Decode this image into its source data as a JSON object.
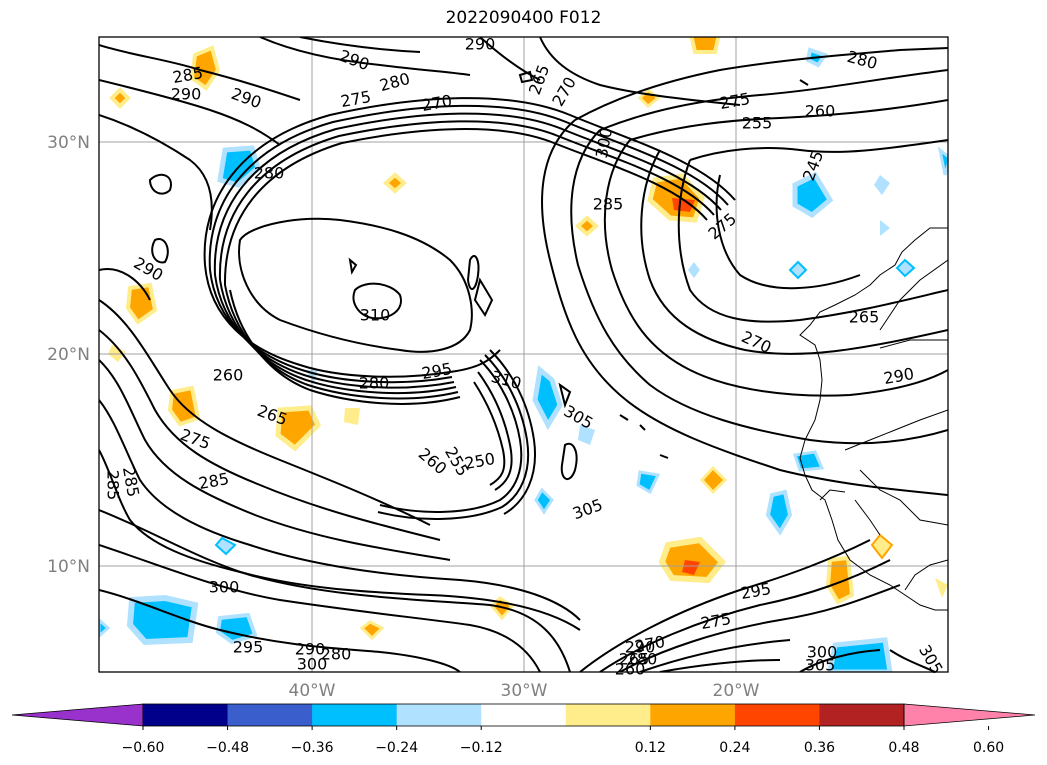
{
  "title": "2022090400 F012",
  "map": {
    "lon_ticks": [
      "40°W",
      "30°W",
      "20°W"
    ],
    "lat_ticks": [
      "30°N",
      "20°N",
      "10°N"
    ],
    "contour_labels": [
      "290",
      "290",
      "285",
      "290",
      "290",
      "280",
      "275",
      "270",
      "265",
      "270",
      "300",
      "275",
      "255",
      "260",
      "280",
      "280",
      "245",
      "290",
      "285",
      "275",
      "310",
      "260",
      "280",
      "295",
      "310",
      "265",
      "275",
      "260",
      "255",
      "250",
      "305",
      "265",
      "270",
      "290",
      "285",
      "285",
      "285",
      "300",
      "305",
      "295",
      "290",
      "280",
      "300",
      "295",
      "290",
      "280",
      "275",
      "270",
      "265",
      "260",
      "300",
      "305",
      "305"
    ]
  },
  "colorbar": {
    "ticks": [
      "−0.60",
      "−0.48",
      "−0.36",
      "−0.24",
      "−0.12",
      "0.12",
      "0.24",
      "0.36",
      "0.48",
      "0.60"
    ],
    "colors": [
      "#9932cc",
      "#00008b",
      "#3a5fcd",
      "#00bfff",
      "#b0e2ff",
      "#ffffff",
      "#ffec8b",
      "#ffa500",
      "#ff4500",
      "#b22222",
      "#ff82ab"
    ]
  }
}
